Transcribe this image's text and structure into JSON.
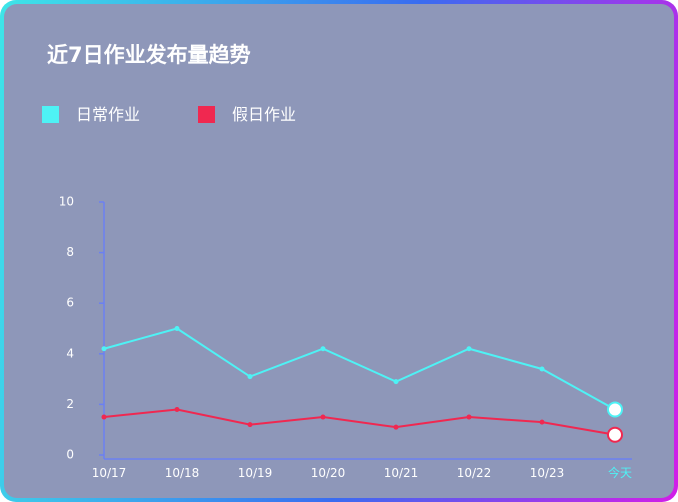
{
  "chart_data": {
    "type": "line",
    "title": "近7日作业发布量趋势",
    "categories": [
      "10/17",
      "10/18",
      "10/19",
      "10/20",
      "10/21",
      "10/22",
      "10/23",
      "今天"
    ],
    "series": [
      {
        "name": "日常作业",
        "color": "#4ef2f5",
        "values": [
          4.2,
          5.0,
          3.1,
          4.2,
          2.9,
          4.2,
          3.4,
          1.8
        ]
      },
      {
        "name": "假日作业",
        "color": "#f02850",
        "values": [
          1.5,
          1.8,
          1.2,
          1.5,
          1.1,
          1.5,
          1.3,
          0.8
        ]
      }
    ],
    "ylim": [
      0,
      10
    ],
    "yticks": [
      0,
      2,
      4,
      6,
      8,
      10
    ],
    "highlight_color": "#4ef2f5"
  }
}
